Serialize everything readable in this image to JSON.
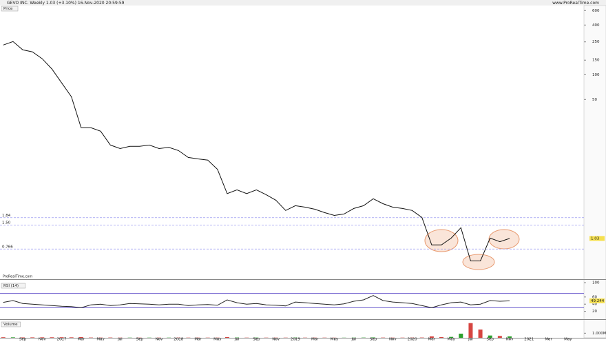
{
  "header": {
    "title": "GEVO INC. Weekly 1.03 (+3.10%) 16-Nov-2020 20:59:59",
    "site": "www.ProRealTime.com",
    "watermark": "ProRealTime.com"
  },
  "chart_data": {
    "x": [
      "2016-07",
      "2016-08",
      "2016-09",
      "2016-10",
      "2016-11",
      "2016-12",
      "2017-01",
      "2017-02",
      "2017-03",
      "2017-04",
      "2017-05",
      "2017-06",
      "2017-07",
      "2017-08",
      "2017-09",
      "2017-10",
      "2017-11",
      "2017-12",
      "2018-01",
      "2018-02",
      "2018-03",
      "2018-04",
      "2018-05",
      "2018-06",
      "2018-07",
      "2018-08",
      "2018-09",
      "2018-10",
      "2018-11",
      "2018-12",
      "2019-01",
      "2019-02",
      "2019-03",
      "2019-04",
      "2019-05",
      "2019-06",
      "2019-07",
      "2019-08",
      "2019-09",
      "2019-10",
      "2019-11",
      "2019-12",
      "2020-01",
      "2020-02",
      "2020-03",
      "2020-04",
      "2020-05",
      "2020-06",
      "2020-07",
      "2020-08",
      "2020-09",
      "2020-10",
      "2020-11"
    ],
    "xticks": [
      {
        "value": "2016-09",
        "label": "Sep"
      },
      {
        "value": "2016-11",
        "label": "Nov"
      },
      {
        "value": "2017-01",
        "label": "2017"
      },
      {
        "value": "2017-03",
        "label": "Mar"
      },
      {
        "value": "2017-05",
        "label": "May"
      },
      {
        "value": "2017-07",
        "label": "Jul"
      },
      {
        "value": "2017-09",
        "label": "Sep"
      },
      {
        "value": "2017-11",
        "label": "Nov"
      },
      {
        "value": "2018-01",
        "label": "2018"
      },
      {
        "value": "2018-03",
        "label": "Mar"
      },
      {
        "value": "2018-05",
        "label": "May"
      },
      {
        "value": "2018-07",
        "label": "Jul"
      },
      {
        "value": "2018-09",
        "label": "Sep"
      },
      {
        "value": "2018-11",
        "label": "Nov"
      },
      {
        "value": "2019-01",
        "label": "2019"
      },
      {
        "value": "2019-03",
        "label": "Mar"
      },
      {
        "value": "2019-05",
        "label": "May"
      },
      {
        "value": "2019-07",
        "label": "Jul"
      },
      {
        "value": "2019-09",
        "label": "Sep"
      },
      {
        "value": "2019-11",
        "label": "Nov"
      },
      {
        "value": "2020-01",
        "label": "2020"
      },
      {
        "value": "2020-03",
        "label": "Mar"
      },
      {
        "value": "2020-05",
        "label": "May"
      },
      {
        "value": "2020-07",
        "label": "Jul"
      },
      {
        "value": "2020-09",
        "label": "Sep"
      },
      {
        "value": "2020-11",
        "label": "Nov"
      },
      {
        "value": "2021-01",
        "label": "2021"
      },
      {
        "value": "2021-03",
        "label": "Mar"
      },
      {
        "value": "2021-05",
        "label": "May"
      }
    ],
    "panels": [
      {
        "type": "line",
        "label": "Price",
        "log_scale": true,
        "ylim": [
          0.33,
          690
        ],
        "yticks": [
          600,
          400,
          250,
          150,
          100,
          50
        ],
        "series": [
          {
            "name": "GEVO INC.",
            "color": "#111111",
            "values": [
              229,
              252,
              200,
              189,
              156,
              117,
              79.4,
              54,
              22.7,
              22.7,
              20.6,
              14.0,
              12.7,
              13.5,
              13.5,
              14.0,
              12.7,
              13.1,
              12.0,
              9.9,
              9.5,
              9.2,
              7.1,
              3.6,
              4.0,
              3.6,
              4.0,
              3.5,
              3.0,
              2.25,
              2.57,
              2.47,
              2.33,
              2.12,
              1.96,
              2.04,
              2.38,
              2.57,
              3.12,
              2.72,
              2.47,
              2.38,
              2.25,
              1.85,
              0.86,
              0.86,
              1.04,
              1.39,
              0.55,
              0.55,
              1.04,
              0.94,
              1.03
            ]
          }
        ],
        "levels": [
          {
            "value": 1.84,
            "label": "1.84"
          },
          {
            "value": 1.5,
            "label": "1.50"
          },
          0.766
        ],
        "level_color": "#9a9af0",
        "last_value": 1.03,
        "last_color": "#f5e050"
      },
      {
        "type": "line",
        "label": "RSI (14)",
        "ylim": [
          0,
          100
        ],
        "yticks": [
          20,
          40,
          60,
          100
        ],
        "series": [
          {
            "name": "RSI",
            "color": "#222222",
            "values": [
              45,
              50,
              42,
              40,
              38,
              36,
              34,
              33,
              30,
              38,
              40,
              36,
              38,
              42,
              41,
              40,
              38,
              40,
              40,
              36,
              38,
              39,
              37,
              52,
              44,
              40,
              42,
              38,
              37,
              35,
              46,
              44,
              42,
              40,
              38,
              41,
              48,
              52,
              64,
              50,
              46,
              44,
              42,
              36,
              30,
              38,
              44,
              46,
              38,
              40,
              50,
              48,
              49.244
            ]
          }
        ],
        "levels": [
          70,
          30
        ],
        "level_color": "#6a5acd",
        "last_value": 49.244,
        "last_color": "#f5e050"
      },
      {
        "type": "bar",
        "label": "Volume",
        "ylim": [
          0,
          3600000
        ],
        "yticks": [
          {
            "value": 1000000,
            "label": "1.000M"
          }
        ],
        "up_color": "#2ca02c",
        "down_color": "#d64541",
        "series": [
          {
            "name": "Volume",
            "values": [
              120000,
              100000,
              80000,
              90000,
              100000,
              110000,
              120000,
              100000,
              150000,
              60000,
              50000,
              60000,
              40000,
              40000,
              40000,
              40000,
              40000,
              40000,
              40000,
              40000,
              40000,
              40000,
              40000,
              150000,
              60000,
              40000,
              50000,
              40000,
              40000,
              40000,
              50000,
              40000,
              40000,
              40000,
              30000,
              30000,
              40000,
              50000,
              80000,
              50000,
              40000,
              40000,
              40000,
              60000,
              300000,
              150000,
              200000,
              900000,
              3200000,
              1800000,
              500000,
              400000,
              300000
            ]
          }
        ]
      }
    ]
  }
}
